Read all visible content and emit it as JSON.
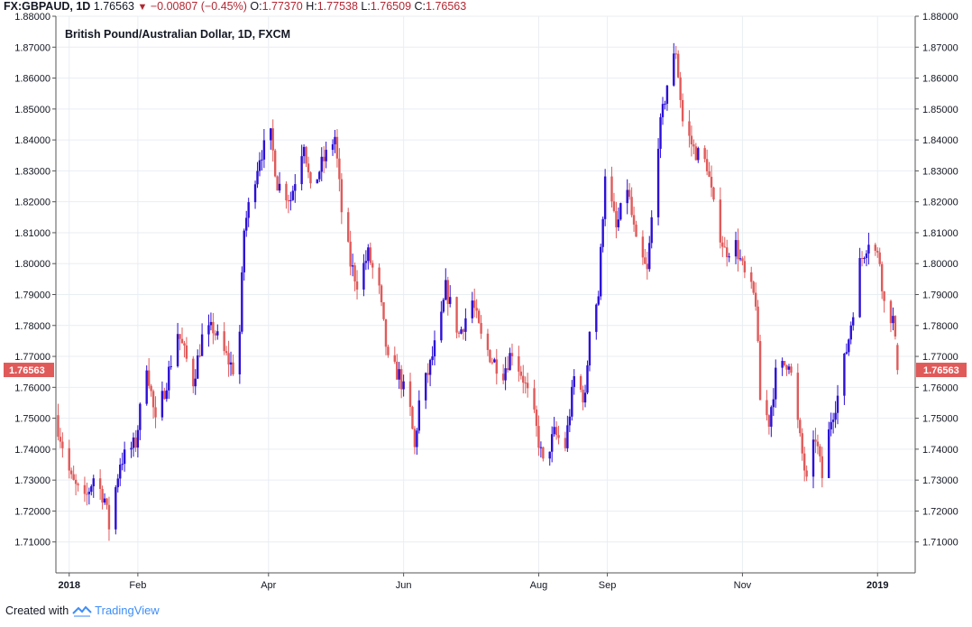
{
  "header": {
    "symbol": "FX:GBPAUD, 1D",
    "last": "1.76563",
    "change": "−0.00807 (−0.45%)",
    "o_label": "O:",
    "o_value": "1.77370",
    "h_label": "H:",
    "h_value": "1.77538",
    "l_label": "L:",
    "l_value": "1.76509",
    "c_label": "C:",
    "c_value": "1.76563",
    "down_icon": "triangle-down-icon"
  },
  "footer": {
    "created_with": "Created with",
    "brand": "TradingView",
    "logo_icon": "tradingview-cloud-icon"
  },
  "chart_data": {
    "type": "candlestick",
    "title": "British Pound/Australian Dollar, 1D, FXCM",
    "ylim": [
      1.7,
      1.88
    ],
    "y_ticks": [
      "1.71000",
      "1.72000",
      "1.73000",
      "1.74000",
      "1.75000",
      "1.76000",
      "1.77000",
      "1.78000",
      "1.79000",
      "1.80000",
      "1.81000",
      "1.82000",
      "1.83000",
      "1.84000",
      "1.85000",
      "1.86000",
      "1.87000",
      "1.88000"
    ],
    "x_ticks": [
      "2018",
      "Feb",
      "Apr",
      "Jun",
      "Aug",
      "Sep",
      "Nov",
      "2019"
    ],
    "last_price_label": "1.76563",
    "grid": true,
    "colors": {
      "up": "#2b0fd6",
      "down": "#e05a5a",
      "grid": "#e9eef2",
      "axis": "#555555",
      "price_tag": "#e05a5a"
    },
    "anchors": [
      {
        "date": "2017-12-27",
        "close": 1.747
      },
      {
        "date": "2018-01-02",
        "close": 1.73
      },
      {
        "date": "2018-01-08",
        "close": 1.723
      },
      {
        "date": "2018-01-12",
        "close": 1.731
      },
      {
        "date": "2018-01-17",
        "close": 1.724
      },
      {
        "date": "2018-01-19",
        "close": 1.715
      },
      {
        "date": "2018-01-24",
        "close": 1.736
      },
      {
        "date": "2018-01-31",
        "close": 1.742
      },
      {
        "date": "2018-02-05",
        "close": 1.768
      },
      {
        "date": "2018-02-09",
        "close": 1.748
      },
      {
        "date": "2018-02-14",
        "close": 1.762
      },
      {
        "date": "2018-02-19",
        "close": 1.778
      },
      {
        "date": "2018-02-26",
        "close": 1.762
      },
      {
        "date": "2018-03-02",
        "close": 1.776
      },
      {
        "date": "2018-03-07",
        "close": 1.779
      },
      {
        "date": "2018-03-12",
        "close": 1.771
      },
      {
        "date": "2018-03-16",
        "close": 1.766
      },
      {
        "date": "2018-03-19",
        "close": 1.778
      },
      {
        "date": "2018-03-21",
        "close": 1.811
      },
      {
        "date": "2018-03-24",
        "close": 1.822
      },
      {
        "date": "2018-03-28",
        "close": 1.835
      },
      {
        "date": "2018-04-02",
        "close": 1.841
      },
      {
        "date": "2018-04-05",
        "close": 1.826
      },
      {
        "date": "2018-04-11",
        "close": 1.821
      },
      {
        "date": "2018-04-17",
        "close": 1.84
      },
      {
        "date": "2018-04-20",
        "close": 1.823
      },
      {
        "date": "2018-04-25",
        "close": 1.832
      },
      {
        "date": "2018-05-01",
        "close": 1.841
      },
      {
        "date": "2018-05-04",
        "close": 1.817
      },
      {
        "date": "2018-05-08",
        "close": 1.8
      },
      {
        "date": "2018-05-11",
        "close": 1.794
      },
      {
        "date": "2018-05-16",
        "close": 1.803
      },
      {
        "date": "2018-05-21",
        "close": 1.791
      },
      {
        "date": "2018-05-25",
        "close": 1.768
      },
      {
        "date": "2018-05-30",
        "close": 1.764
      },
      {
        "date": "2018-06-04",
        "close": 1.752
      },
      {
        "date": "2018-06-06",
        "close": 1.74
      },
      {
        "date": "2018-06-08",
        "close": 1.755
      },
      {
        "date": "2018-06-13",
        "close": 1.767
      },
      {
        "date": "2018-06-18",
        "close": 1.782
      },
      {
        "date": "2018-06-20",
        "close": 1.792
      },
      {
        "date": "2018-06-26",
        "close": 1.777
      },
      {
        "date": "2018-07-02",
        "close": 1.788
      },
      {
        "date": "2018-07-06",
        "close": 1.776
      },
      {
        "date": "2018-07-11",
        "close": 1.769
      },
      {
        "date": "2018-07-16",
        "close": 1.765
      },
      {
        "date": "2018-07-20",
        "close": 1.772
      },
      {
        "date": "2018-07-25",
        "close": 1.763
      },
      {
        "date": "2018-07-30",
        "close": 1.75
      },
      {
        "date": "2018-08-03",
        "close": 1.735
      },
      {
        "date": "2018-08-08",
        "close": 1.745
      },
      {
        "date": "2018-08-13",
        "close": 1.741
      },
      {
        "date": "2018-08-17",
        "close": 1.763
      },
      {
        "date": "2018-08-22",
        "close": 1.756
      },
      {
        "date": "2018-08-24",
        "close": 1.78
      },
      {
        "date": "2018-08-28",
        "close": 1.79
      },
      {
        "date": "2018-08-31",
        "close": 1.83
      },
      {
        "date": "2018-09-05",
        "close": 1.811
      },
      {
        "date": "2018-09-10",
        "close": 1.825
      },
      {
        "date": "2018-09-14",
        "close": 1.806
      },
      {
        "date": "2018-09-19",
        "close": 1.797
      },
      {
        "date": "2018-09-24",
        "close": 1.84
      },
      {
        "date": "2018-09-28",
        "close": 1.858
      },
      {
        "date": "2018-10-02",
        "close": 1.869
      },
      {
        "date": "2018-10-05",
        "close": 1.846
      },
      {
        "date": "2018-10-10",
        "close": 1.837
      },
      {
        "date": "2018-10-16",
        "close": 1.832
      },
      {
        "date": "2018-10-19",
        "close": 1.818
      },
      {
        "date": "2018-10-24",
        "close": 1.804
      },
      {
        "date": "2018-10-29",
        "close": 1.806
      },
      {
        "date": "2018-11-02",
        "close": 1.796
      },
      {
        "date": "2018-11-07",
        "close": 1.788
      },
      {
        "date": "2018-11-09",
        "close": 1.756
      },
      {
        "date": "2018-11-13",
        "close": 1.749
      },
      {
        "date": "2018-11-16",
        "close": 1.764
      },
      {
        "date": "2018-11-22",
        "close": 1.769
      },
      {
        "date": "2018-11-27",
        "close": 1.743
      },
      {
        "date": "2018-11-30",
        "close": 1.729
      },
      {
        "date": "2018-12-04",
        "close": 1.744
      },
      {
        "date": "2018-12-07",
        "close": 1.731
      },
      {
        "date": "2018-12-11",
        "close": 1.75
      },
      {
        "date": "2018-12-14",
        "close": 1.757
      },
      {
        "date": "2018-12-19",
        "close": 1.776
      },
      {
        "date": "2018-12-24",
        "close": 1.8
      },
      {
        "date": "2018-12-28",
        "close": 1.808
      },
      {
        "date": "2019-01-02",
        "close": 1.801
      },
      {
        "date": "2019-01-04",
        "close": 1.787
      },
      {
        "date": "2019-01-08",
        "close": 1.782
      },
      {
        "date": "2019-01-10",
        "close": 1.7656
      }
    ]
  }
}
